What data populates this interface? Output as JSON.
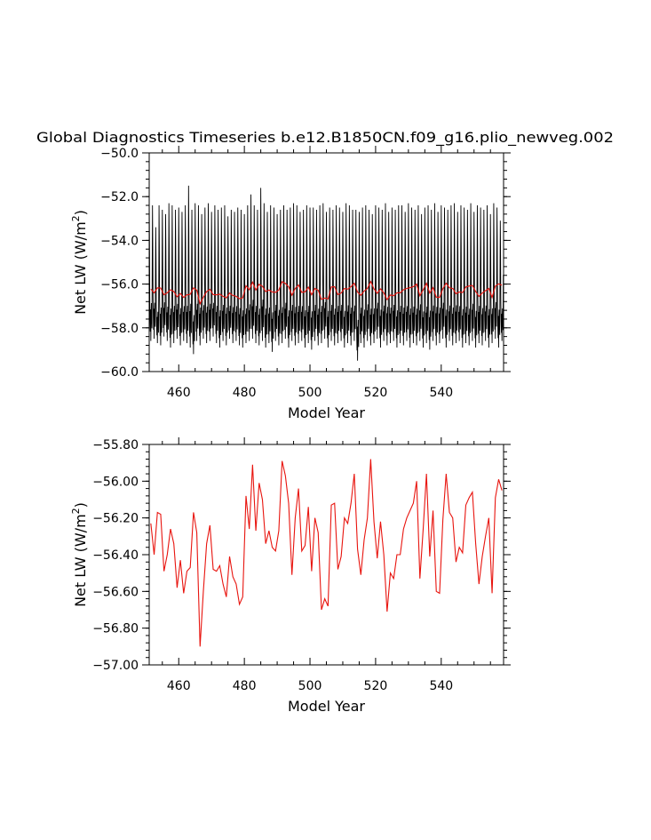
{
  "title": "Global Diagnostics Timeseries b.e12.B1850CN.f09_g16.plio_newveg.002",
  "colors": {
    "monthly": "#000000",
    "annual": "#e8140e"
  },
  "chart_data": [
    {
      "type": "line",
      "xlabel": "Model Year",
      "ylabel_prefix": "Net LW (W/m",
      "ylabel_sup": "2",
      "ylabel_suffix": ")",
      "xlim": [
        451,
        559
      ],
      "ylim": [
        -60.0,
        -50.0
      ],
      "xticks": [
        460,
        480,
        500,
        520,
        540
      ],
      "xtick_labels": [
        "460",
        "480",
        "500",
        "520",
        "540"
      ],
      "yticks": [
        -60.0,
        -58.0,
        -56.0,
        -54.0,
        -52.0,
        -50.0
      ],
      "ytick_labels": [
        "−60.0",
        "−58.0",
        "−56.0",
        "−54.0",
        "−52.0",
        "−50.0"
      ],
      "grid": false,
      "series": [
        {
          "kind": "monthly",
          "monthly_minimum_by_year": [
            -58.6,
            -58.5,
            -58.7,
            -58.8,
            -58.4,
            -58.6,
            -58.9,
            -58.7,
            -58.5,
            -58.8,
            -58.6,
            -58.7,
            -58.9,
            -59.2,
            -58.6,
            -58.8,
            -58.5,
            -58.7,
            -58.6,
            -58.4,
            -58.7,
            -58.9,
            -58.6,
            -58.8,
            -58.5,
            -58.7,
            -58.6,
            -58.8,
            -58.9,
            -58.7,
            -58.6,
            -58.5,
            -58.7,
            -58.8,
            -58.6,
            -58.9,
            -58.7,
            -59.1,
            -58.6,
            -58.8,
            -58.7,
            -58.5,
            -58.9,
            -58.6,
            -58.8,
            -58.7,
            -58.6,
            -58.9,
            -58.7,
            -59.0,
            -58.6,
            -58.8,
            -58.7,
            -58.5,
            -58.9,
            -58.6,
            -58.8,
            -58.7,
            -58.6,
            -58.9,
            -58.7,
            -58.8,
            -58.6,
            -59.5,
            -58.7,
            -58.9,
            -58.6,
            -58.8,
            -58.7,
            -58.5,
            -58.9,
            -58.6,
            -58.8,
            -58.7,
            -58.6,
            -58.9,
            -58.7,
            -58.8,
            -58.6,
            -58.9,
            -58.7,
            -58.8,
            -58.6,
            -58.9,
            -58.7,
            -59.0,
            -58.6,
            -58.8,
            -58.7,
            -58.5,
            -58.9,
            -58.6,
            -58.8,
            -58.7,
            -58.6,
            -58.9,
            -58.7,
            -58.8,
            -58.6,
            -58.9,
            -58.7,
            -58.8,
            -58.6,
            -58.9,
            -58.7,
            -58.5,
            -58.9,
            -58.6
          ],
          "monthly_maximum_by_year": [
            -52.2,
            -52.4,
            -53.4,
            -52.4,
            -52.6,
            -52.8,
            -52.3,
            -52.4,
            -52.6,
            -52.5,
            -52.7,
            -52.4,
            -51.5,
            -52.6,
            -52.3,
            -52.4,
            -52.8,
            -52.5,
            -52.3,
            -52.7,
            -52.4,
            -52.6,
            -52.5,
            -52.4,
            -52.9,
            -52.6,
            -52.7,
            -52.5,
            -52.6,
            -52.8,
            -52.4,
            -51.9,
            -52.4,
            -52.6,
            -51.6,
            -52.3,
            -52.7,
            -52.4,
            -52.5,
            -52.8,
            -52.6,
            -52.4,
            -52.6,
            -52.5,
            -52.3,
            -52.4,
            -52.7,
            -52.6,
            -52.4,
            -52.5,
            -52.5,
            -52.6,
            -52.4,
            -52.3,
            -52.7,
            -52.5,
            -52.6,
            -52.4,
            -52.5,
            -52.7,
            -52.3,
            -52.4,
            -52.6,
            -52.6,
            -52.7,
            -52.5,
            -52.4,
            -52.6,
            -52.8,
            -52.4,
            -52.5,
            -52.6,
            -52.3,
            -52.7,
            -52.5,
            -52.6,
            -52.4,
            -52.4,
            -52.7,
            -52.3,
            -52.5,
            -52.6,
            -52.4,
            -52.8,
            -52.5,
            -52.4,
            -52.6,
            -52.3,
            -52.7,
            -52.4,
            -52.5,
            -52.6,
            -52.4,
            -52.3,
            -52.7,
            -52.4,
            -52.5,
            -52.6,
            -52.3,
            -52.7,
            -52.4,
            -52.5,
            -52.6,
            -52.4,
            -52.8,
            -52.3,
            -52.5,
            -53.1
          ]
        },
        {
          "kind": "annual",
          "x": [
            451,
            452,
            453,
            454,
            455,
            456,
            457,
            458,
            459,
            460,
            461,
            462,
            463,
            464,
            465,
            466,
            467,
            468,
            469,
            470,
            471,
            472,
            473,
            474,
            475,
            476,
            477,
            478,
            479,
            480,
            481,
            482,
            483,
            484,
            485,
            486,
            487,
            488,
            489,
            490,
            491,
            492,
            493,
            494,
            495,
            496,
            497,
            498,
            499,
            500,
            501,
            502,
            503,
            504,
            505,
            506,
            507,
            508,
            509,
            510,
            511,
            512,
            513,
            514,
            515,
            516,
            517,
            518,
            519,
            520,
            521,
            522,
            523,
            524,
            525,
            526,
            527,
            528,
            529,
            530,
            531,
            532,
            533,
            534,
            535,
            536,
            537,
            538,
            539,
            540,
            541,
            542,
            543,
            544,
            545,
            546,
            547,
            548,
            549,
            550,
            551,
            552,
            553,
            554,
            555,
            556,
            557,
            558
          ],
          "values": [
            -56.23,
            -56.4,
            -56.17,
            -56.18,
            -56.49,
            -56.4,
            -56.26,
            -56.34,
            -56.58,
            -56.43,
            -56.61,
            -56.49,
            -56.47,
            -56.17,
            -56.28,
            -56.9,
            -56.6,
            -56.34,
            -56.24,
            -56.48,
            -56.49,
            -56.46,
            -56.56,
            -56.63,
            -56.41,
            -56.52,
            -56.56,
            -56.67,
            -56.63,
            -56.08,
            -56.26,
            -55.91,
            -56.27,
            -56.01,
            -56.1,
            -56.34,
            -56.27,
            -56.36,
            -56.38,
            -56.27,
            -55.89,
            -55.97,
            -56.12,
            -56.51,
            -56.2,
            -56.04,
            -56.38,
            -56.35,
            -56.14,
            -56.49,
            -56.2,
            -56.28,
            -56.7,
            -56.64,
            -56.68,
            -56.13,
            -56.12,
            -56.48,
            -56.41,
            -56.2,
            -56.23,
            -56.12,
            -55.96,
            -56.37,
            -56.51,
            -56.32,
            -56.2,
            -55.88,
            -56.22,
            -56.42,
            -56.22,
            -56.4,
            -56.71,
            -56.5,
            -56.53,
            -56.4,
            -56.4,
            -56.26,
            -56.2,
            -56.16,
            -56.12,
            -56.0,
            -56.53,
            -56.26,
            -55.96,
            -56.41,
            -56.16,
            -56.6,
            -56.61,
            -56.21,
            -55.96,
            -56.17,
            -56.2,
            -56.44,
            -56.36,
            -56.39,
            -56.13,
            -56.09,
            -56.06,
            -56.34,
            -56.56,
            -56.41,
            -56.3,
            -56.2,
            -56.61,
            -56.09,
            -55.99,
            -56.05
          ]
        }
      ]
    },
    {
      "type": "line",
      "xlabel": "Model Year",
      "ylabel_prefix": "Net LW (W/m",
      "ylabel_sup": "2",
      "ylabel_suffix": ")",
      "xlim": [
        451,
        559
      ],
      "ylim": [
        -57.0,
        -55.8
      ],
      "xticks": [
        460,
        480,
        500,
        520,
        540
      ],
      "xtick_labels": [
        "460",
        "480",
        "500",
        "520",
        "540"
      ],
      "yticks": [
        -57.0,
        -56.8,
        -56.6,
        -56.4,
        -56.2,
        -56.0,
        -55.8
      ],
      "ytick_labels": [
        "−57.00",
        "−56.80",
        "−56.60",
        "−56.40",
        "−56.20",
        "−56.00",
        "−55.80"
      ],
      "grid": false,
      "series": [
        {
          "kind": "annual",
          "x": [
            451,
            452,
            453,
            454,
            455,
            456,
            457,
            458,
            459,
            460,
            461,
            462,
            463,
            464,
            465,
            466,
            467,
            468,
            469,
            470,
            471,
            472,
            473,
            474,
            475,
            476,
            477,
            478,
            479,
            480,
            481,
            482,
            483,
            484,
            485,
            486,
            487,
            488,
            489,
            490,
            491,
            492,
            493,
            494,
            495,
            496,
            497,
            498,
            499,
            500,
            501,
            502,
            503,
            504,
            505,
            506,
            507,
            508,
            509,
            510,
            511,
            512,
            513,
            514,
            515,
            516,
            517,
            518,
            519,
            520,
            521,
            522,
            523,
            524,
            525,
            526,
            527,
            528,
            529,
            530,
            531,
            532,
            533,
            534,
            535,
            536,
            537,
            538,
            539,
            540,
            541,
            542,
            543,
            544,
            545,
            546,
            547,
            548,
            549,
            550,
            551,
            552,
            553,
            554,
            555,
            556,
            557,
            558
          ],
          "values": [
            -56.23,
            -56.4,
            -56.17,
            -56.18,
            -56.49,
            -56.4,
            -56.26,
            -56.34,
            -56.58,
            -56.43,
            -56.61,
            -56.49,
            -56.47,
            -56.17,
            -56.28,
            -56.9,
            -56.6,
            -56.34,
            -56.24,
            -56.48,
            -56.49,
            -56.46,
            -56.56,
            -56.63,
            -56.41,
            -56.52,
            -56.56,
            -56.67,
            -56.63,
            -56.08,
            -56.26,
            -55.91,
            -56.27,
            -56.01,
            -56.1,
            -56.34,
            -56.27,
            -56.36,
            -56.38,
            -56.27,
            -55.89,
            -55.97,
            -56.12,
            -56.51,
            -56.2,
            -56.04,
            -56.38,
            -56.35,
            -56.14,
            -56.49,
            -56.2,
            -56.28,
            -56.7,
            -56.64,
            -56.68,
            -56.13,
            -56.12,
            -56.48,
            -56.41,
            -56.2,
            -56.23,
            -56.12,
            -55.96,
            -56.37,
            -56.51,
            -56.32,
            -56.2,
            -55.88,
            -56.22,
            -56.42,
            -56.22,
            -56.4,
            -56.71,
            -56.5,
            -56.53,
            -56.4,
            -56.4,
            -56.26,
            -56.2,
            -56.16,
            -56.12,
            -56.0,
            -56.53,
            -56.26,
            -55.96,
            -56.41,
            -56.16,
            -56.6,
            -56.61,
            -56.21,
            -55.96,
            -56.17,
            -56.2,
            -56.44,
            -56.36,
            -56.39,
            -56.13,
            -56.09,
            -56.06,
            -56.34,
            -56.56,
            -56.41,
            -56.3,
            -56.2,
            -56.61,
            -56.09,
            -55.99,
            -56.05
          ]
        }
      ]
    }
  ]
}
